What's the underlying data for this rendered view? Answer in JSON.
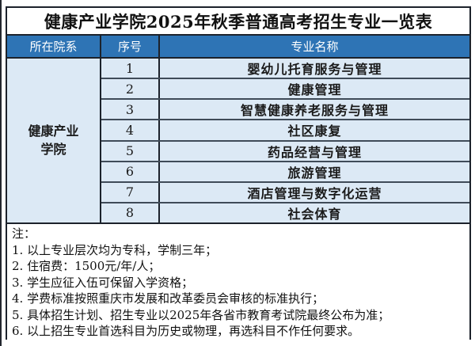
{
  "title": "健康产业学院2025年秋季普通高考招生专业一览表",
  "table": {
    "headers": [
      "所在院系",
      "序号",
      "专业名称"
    ],
    "department": "健康产业学院",
    "rows": [
      {
        "no": "1",
        "major": "婴幼儿托育服务与管理"
      },
      {
        "no": "2",
        "major": "健康管理"
      },
      {
        "no": "3",
        "major": "智慧健康养老服务与管理"
      },
      {
        "no": "4",
        "major": "社区康复"
      },
      {
        "no": "5",
        "major": "药品经营与管理"
      },
      {
        "no": "6",
        "major": "旅游管理"
      },
      {
        "no": "7",
        "major": "酒店管理与数字化运营"
      },
      {
        "no": "8",
        "major": "社会体育"
      }
    ]
  },
  "notes": {
    "label": "注：",
    "lines": [
      "1. 以上专业层次均为专科，学制三年；",
      "2. 住宿费：1500元/年/人；",
      "3. 学生应征入伍可保留入学资格；",
      "4. 学费标准按照重庆市发展和改革委员会审核的标准执行；",
      "5. 具体招生计划、招生专业以2025年各省市教育考试院最终公布为准；",
      "6. 以上招生专业首选科目为历史或物理，再选科目不作任何要求。"
    ]
  },
  "colors": {
    "header_bg": "#2E74B5",
    "row_bg": "#DCE9F5",
    "border_dark": "#1c222b",
    "title_text": "#111111"
  }
}
